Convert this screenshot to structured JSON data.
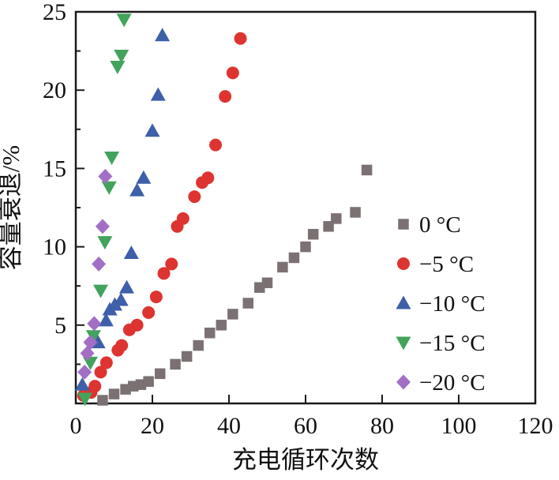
{
  "chart_data": {
    "type": "scatter",
    "title": "",
    "xlabel": "充电循环次数",
    "ylabel": "容量衰退/%",
    "xlim": [
      0,
      120
    ],
    "ylim": [
      0,
      25
    ],
    "xticks": [
      0,
      20,
      40,
      60,
      80,
      100,
      120
    ],
    "yticks": [
      5,
      10,
      15,
      20,
      25
    ],
    "y_minor_ticks": [
      2.5,
      7.5,
      12.5,
      17.5,
      22.5
    ],
    "grid": false,
    "legend_position": "center-right",
    "frame_color": "#1a1a1a",
    "series": [
      {
        "name": "0 °C",
        "marker": "square",
        "color": "#7b7173",
        "points": [
          [
            7,
            0.2
          ],
          [
            10,
            0.6
          ],
          [
            13,
            0.9
          ],
          [
            15,
            1.1
          ],
          [
            17,
            1.2
          ],
          [
            19,
            1.4
          ],
          [
            22,
            1.9
          ],
          [
            26,
            2.5
          ],
          [
            29,
            3.0
          ],
          [
            32,
            3.7
          ],
          [
            35,
            4.5
          ],
          [
            38,
            5.0
          ],
          [
            41,
            5.7
          ],
          [
            45,
            6.4
          ],
          [
            48,
            7.4
          ],
          [
            50,
            7.7
          ],
          [
            54,
            8.7
          ],
          [
            57,
            9.3
          ],
          [
            60,
            10.0
          ],
          [
            62,
            10.8
          ],
          [
            66,
            11.3
          ],
          [
            68,
            11.8
          ],
          [
            73,
            12.2
          ],
          [
            76,
            14.9
          ]
        ]
      },
      {
        "name": "−5 °C",
        "marker": "circle",
        "color": "#dd3431",
        "points": [
          [
            2,
            0.5
          ],
          [
            4,
            0.7
          ],
          [
            5,
            1.1
          ],
          [
            6.5,
            2.0
          ],
          [
            8,
            2.6
          ],
          [
            11,
            3.4
          ],
          [
            12,
            3.7
          ],
          [
            14,
            4.7
          ],
          [
            16,
            5.0
          ],
          [
            19,
            5.8
          ],
          [
            21,
            6.8
          ],
          [
            23,
            8.3
          ],
          [
            25,
            8.9
          ],
          [
            26.5,
            11.3
          ],
          [
            28,
            11.8
          ],
          [
            31,
            13.2
          ],
          [
            33,
            14.1
          ],
          [
            34.5,
            14.4
          ],
          [
            36.5,
            16.5
          ],
          [
            39,
            19.6
          ],
          [
            41,
            21.1
          ],
          [
            43,
            23.3
          ]
        ]
      },
      {
        "name": "−10 °C",
        "marker": "triangle-up",
        "color": "#3e5fa9",
        "points": [
          [
            1.7,
            1.2
          ],
          [
            5.8,
            3.9
          ],
          [
            7.9,
            5.3
          ],
          [
            8.9,
            6.0
          ],
          [
            10.2,
            6.3
          ],
          [
            11.8,
            6.6
          ],
          [
            13.3,
            7.4
          ],
          [
            14.5,
            9.6
          ],
          [
            16,
            13.6
          ],
          [
            17.7,
            14.4
          ],
          [
            20,
            17.4
          ],
          [
            21.5,
            19.7
          ],
          [
            22.6,
            23.5
          ]
        ]
      },
      {
        "name": "−15 °C",
        "marker": "triangle-down",
        "color": "#42a35c",
        "points": [
          [
            2.4,
            0.3
          ],
          [
            3.8,
            2.6
          ],
          [
            4.6,
            4.3
          ],
          [
            6.5,
            7.2
          ],
          [
            7.6,
            10.3
          ],
          [
            8.7,
            13.8
          ],
          [
            9.4,
            15.7
          ],
          [
            10.9,
            21.5
          ],
          [
            11.9,
            22.2
          ],
          [
            12.6,
            24.5
          ]
        ]
      },
      {
        "name": "−20 °C",
        "marker": "diamond",
        "color": "#a26fc5",
        "points": [
          [
            2.3,
            2.0
          ],
          [
            3.0,
            3.2
          ],
          [
            3.8,
            3.9
          ],
          [
            4.8,
            5.1
          ],
          [
            6.0,
            8.9
          ],
          [
            7.0,
            11.3
          ],
          [
            7.7,
            14.5
          ]
        ]
      }
    ]
  }
}
